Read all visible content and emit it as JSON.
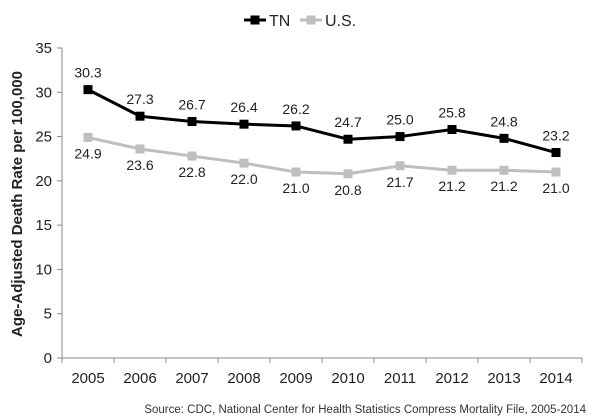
{
  "chart_data": {
    "type": "line",
    "title": "",
    "xlabel": "",
    "ylabel": "Age-Adjusted Death Rate per 100,000",
    "ylim": [
      0,
      35
    ],
    "yticks": [
      0,
      5,
      10,
      15,
      20,
      25,
      30,
      35
    ],
    "categories": [
      "2005",
      "2006",
      "2007",
      "2008",
      "2009",
      "2010",
      "2011",
      "2012",
      "2013",
      "2014"
    ],
    "series": [
      {
        "name": "TN",
        "color": "#000000",
        "values": [
          30.3,
          27.3,
          26.7,
          26.4,
          26.2,
          24.7,
          25.0,
          25.8,
          24.8,
          23.2
        ]
      },
      {
        "name": "U.S.",
        "color": "#bfbfbf",
        "values": [
          24.9,
          23.6,
          22.8,
          22.0,
          21.0,
          20.8,
          21.7,
          21.2,
          21.2,
          21.0
        ]
      }
    ],
    "legend_position": "top-center",
    "grid": false,
    "source": "Source: CDC, National Center for Health Statistics Compress Mortality File, 2005-2014"
  }
}
